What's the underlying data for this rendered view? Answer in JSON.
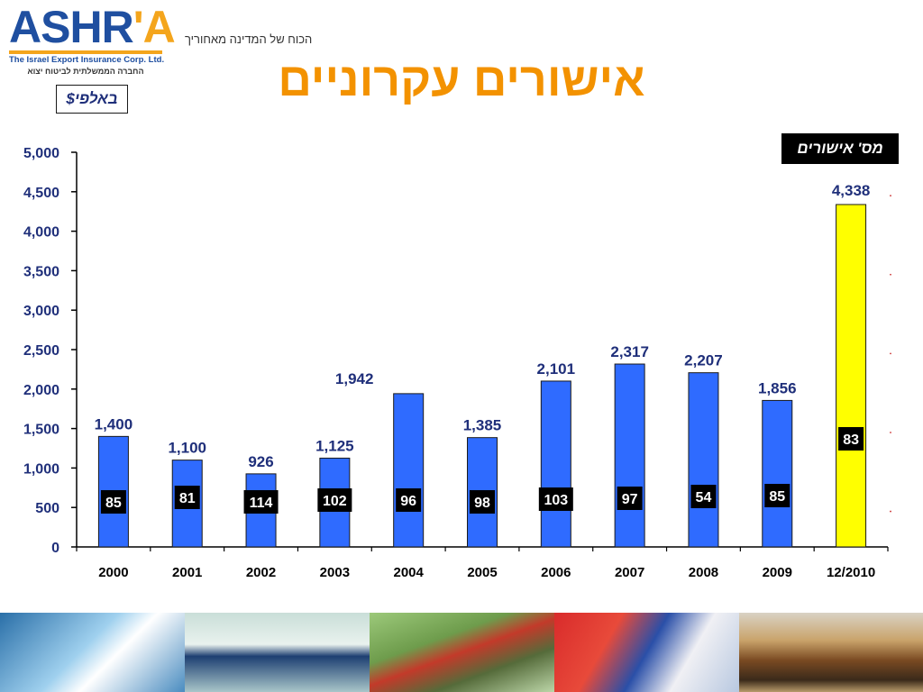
{
  "header": {
    "logo_text_a": "ASHR",
    "logo_text_b": "'A",
    "logo_subtitle": "The Israel Export Insurance Corp. Ltd.",
    "logo_hebrew": "החברה הממשלתית לביטוח יצוא",
    "slogan": "הכוח של המדינה מאחוריך",
    "title": "אישורים עקרוניים",
    "unit": "באלפי$",
    "legend_label": "מס' אישורים"
  },
  "colors": {
    "bar": "#2f6bff",
    "highlight_bar": "#ffff00",
    "value_label": "#1f2f7a",
    "title": "#f39200"
  },
  "chart_data": {
    "type": "bar",
    "title": "אישורים עקרוניים",
    "ylabel": "",
    "xlabel": "",
    "ylim": [
      0,
      5000
    ],
    "yticks": [
      "0",
      "500",
      "1,000",
      "1,500",
      "2,000",
      "2,500",
      "3,000",
      "3,500",
      "4,000",
      "4,500",
      "5,000"
    ],
    "categories": [
      "2000",
      "2001",
      "2002",
      "2003",
      "2004",
      "2005",
      "2006",
      "2007",
      "2008",
      "2009",
      "12/2010"
    ],
    "series": [
      {
        "name": "באלפי$",
        "values": [
          1400,
          1100,
          926,
          1125,
          1942,
          1385,
          2101,
          2317,
          2207,
          1856,
          4338
        ],
        "labels": [
          "1,400",
          "1,100",
          "926",
          "1,125",
          "1,942",
          "1,385",
          "2,101",
          "2,317",
          "2,207",
          "1,856",
          "4,338"
        ]
      },
      {
        "name": "מס' אישורים",
        "values": [
          85,
          81,
          114,
          102,
          96,
          98,
          103,
          97,
          54,
          85,
          83
        ]
      }
    ],
    "highlight_category": "12/2010",
    "grid": false
  }
}
